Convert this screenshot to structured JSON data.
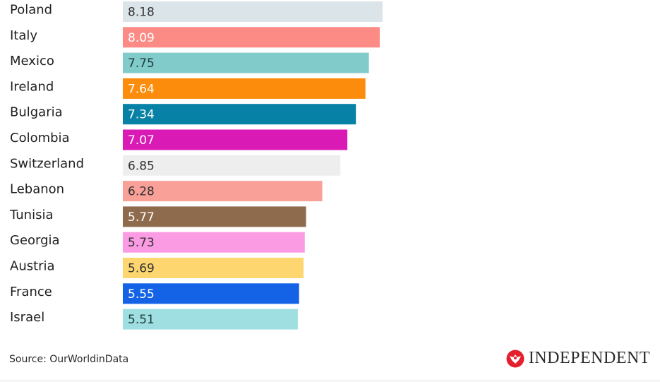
{
  "chart_data": {
    "type": "bar",
    "orientation": "horizontal",
    "title": "",
    "xlabel": "",
    "ylabel": "",
    "xlim": [
      0,
      8.18
    ],
    "grid": false,
    "categories": [
      "Poland",
      "Italy",
      "Mexico",
      "Ireland",
      "Bulgaria",
      "Colombia",
      "Switzerland",
      "Lebanon",
      "Tunisia",
      "Georgia",
      "Austria",
      "France",
      "Israel"
    ],
    "values": [
      8.18,
      8.09,
      7.75,
      7.64,
      7.34,
      7.07,
      6.85,
      6.28,
      5.77,
      5.73,
      5.69,
      5.55,
      5.51
    ],
    "value_labels": [
      "8.18",
      "8.09",
      "7.75",
      "7.64",
      "7.34",
      "7.07",
      "6.85",
      "6.28",
      "5.77",
      "5.73",
      "5.69",
      "5.55",
      "5.51"
    ],
    "bar_colors": [
      "#dbe4e9",
      "#fb8b84",
      "#82cbcb",
      "#fb8c0c",
      "#0781a5",
      "#da1ab4",
      "#eeeeee",
      "#f9a198",
      "#8f6b4e",
      "#fa9be3",
      "#fed670",
      "#1463e6",
      "#9fdee1"
    ],
    "label_colors": [
      "#333333",
      "#ffffff",
      "#1f3b3b",
      "#ffffff",
      "#ffffff",
      "#ffffff",
      "#333333",
      "#333333",
      "#ffffff",
      "#333333",
      "#333333",
      "#ffffff",
      "#1f3b3b"
    ]
  },
  "footer": {
    "source": "Source: OurWorldinData",
    "brand": "INDEPENDENT",
    "brand_icon": "independent-eagle-logo",
    "brand_color": "#e4202f"
  }
}
